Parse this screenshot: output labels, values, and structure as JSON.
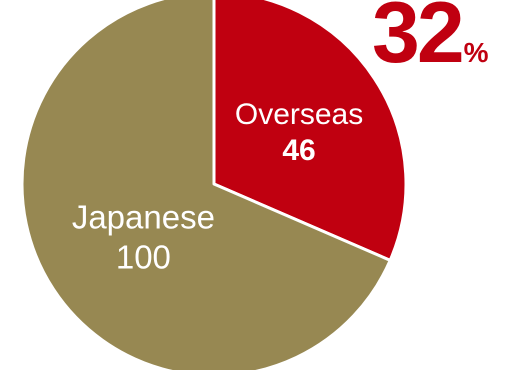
{
  "chart_data": {
    "type": "pie",
    "slices": [
      {
        "label": "Overseas",
        "value": 46,
        "color": "#C00010"
      },
      {
        "label": "Japanese",
        "value": 100,
        "color": "#978852"
      }
    ],
    "highlight": {
      "value": "32",
      "unit": "%"
    }
  }
}
